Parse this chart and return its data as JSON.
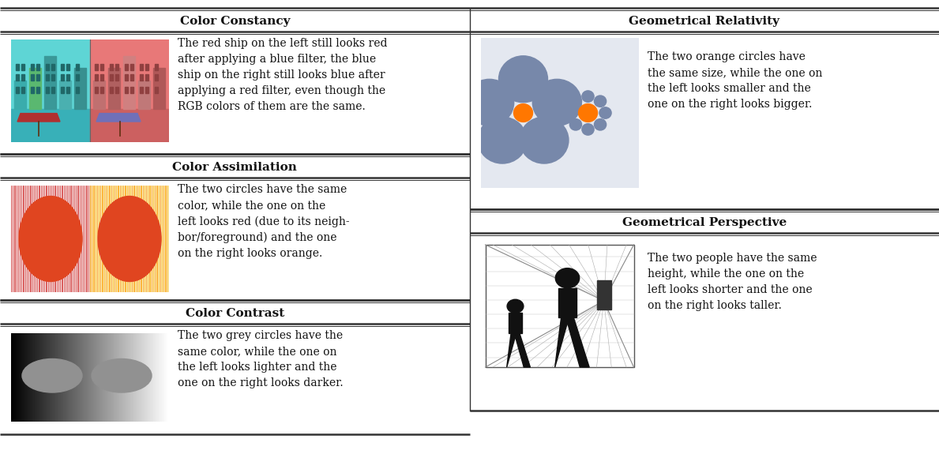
{
  "bg_color": "#ffffff",
  "sections": [
    {
      "title": "Color Constancy",
      "col": 0,
      "row": 0,
      "desc": "The red ship on the left still looks red\nafter applying a blue filter, the blue\nship on the right still looks blue after\napplying a red filter, even though the\nRGB colors of them are the same."
    },
    {
      "title": "Color Assimilation",
      "col": 0,
      "row": 1,
      "desc": "The two circles have the same\ncolor, while the one on the\nleft looks red (due to its neigh-\nbor/foreground) and the one\non the right looks orange."
    },
    {
      "title": "Color Contrast",
      "col": 0,
      "row": 2,
      "desc": "The two grey circles have the\nsame color, while the one on\nthe left looks lighter and the\none on the right looks darker."
    },
    {
      "title": "Geometrical Relativity",
      "col": 1,
      "row": 0,
      "desc": "The two orange circles have\nthe same size, while the one on\nthe left looks smaller and the\none on the right looks bigger."
    },
    {
      "title": "Geometrical Perspective",
      "col": 1,
      "row": 1,
      "desc": "The two people have the same\nheight, while the one on the\nleft looks shorter and the one\non the right looks taller."
    }
  ],
  "title_fs": 11,
  "desc_fs": 10,
  "line_color": "#333333",
  "img_circle_color": "#8899bb",
  "orange_color": "#ff7700",
  "fig_w": 11.89,
  "fig_h": 5.75,
  "dpi": 100
}
